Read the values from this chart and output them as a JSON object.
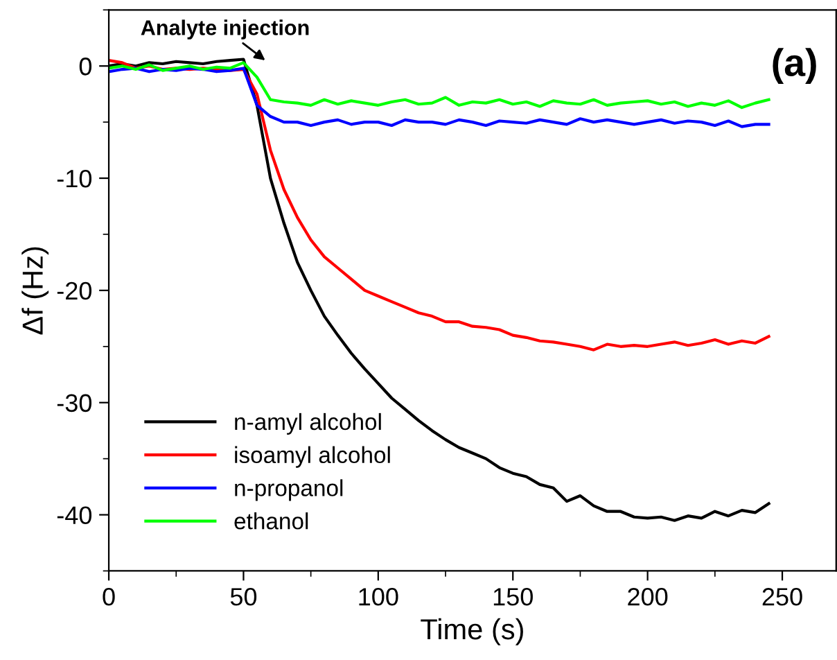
{
  "chart_data": {
    "type": "line",
    "xlabel": "Time (s)",
    "ylabel": "Δf (Hz)",
    "x": [
      0,
      5,
      10,
      15,
      20,
      25,
      30,
      35,
      40,
      45,
      50,
      55,
      60,
      65,
      70,
      75,
      80,
      85,
      90,
      95,
      100,
      105,
      110,
      115,
      120,
      125,
      130,
      135,
      140,
      145,
      150,
      155,
      160,
      165,
      170,
      175,
      180,
      185,
      190,
      195,
      200,
      205,
      210,
      215,
      220,
      225,
      230,
      235,
      240,
      245
    ],
    "series": [
      {
        "name": "n-amyl alcohol",
        "color": "#000000",
        "values": [
          0,
          0.2,
          0,
          0.3,
          0.2,
          0.4,
          0.3,
          0.2,
          0.4,
          0.5,
          0.6,
          -3.5,
          -10,
          -14,
          -17.5,
          -20,
          -22.3,
          -24,
          -25.6,
          -27,
          -28.3,
          -29.6,
          -30.6,
          -31.6,
          -32.5,
          -33.3,
          -34,
          -34.5,
          -35,
          -35.8,
          -36.3,
          -36.6,
          -37.3,
          -37.6,
          -38.8,
          -38.3,
          -39.2,
          -39.7,
          -39.7,
          -40.2,
          -40.3,
          -40.2,
          -40.5,
          -40.1,
          -40.3,
          -39.7,
          -40.1,
          -39.6,
          -39.8,
          -39.0
        ]
      },
      {
        "name": "isoamyl alcohol",
        "color": "#ff0000",
        "values": [
          0.5,
          0.3,
          -0.2,
          0,
          -0.3,
          -0.2,
          -0.3,
          -0.2,
          -0.3,
          -0.4,
          -0.3,
          -2.5,
          -7.5,
          -11,
          -13.5,
          -15.5,
          -17,
          -18,
          -19,
          -20,
          -20.5,
          -21,
          -21.5,
          -22,
          -22.3,
          -22.8,
          -22.8,
          -23.2,
          -23.3,
          -23.5,
          -24,
          -24.2,
          -24.5,
          -24.6,
          -24.8,
          -25,
          -25.3,
          -24.8,
          -25,
          -24.9,
          -25,
          -24.8,
          -24.6,
          -24.9,
          -24.7,
          -24.4,
          -24.8,
          -24.5,
          -24.7,
          -24.1
        ]
      },
      {
        "name": "n-propanol",
        "color": "#0000ff",
        "values": [
          -0.5,
          -0.3,
          -0.2,
          -0.5,
          -0.3,
          -0.4,
          -0.2,
          -0.3,
          -0.5,
          -0.4,
          -0.2,
          -3.5,
          -4.5,
          -5,
          -5,
          -5.3,
          -5,
          -4.8,
          -5.2,
          -5,
          -5,
          -5.3,
          -4.8,
          -5,
          -5,
          -5.2,
          -4.8,
          -5,
          -5.3,
          -4.9,
          -5,
          -5.1,
          -4.8,
          -5,
          -5.2,
          -4.7,
          -5,
          -4.8,
          -5,
          -5.2,
          -5,
          -4.8,
          -5.1,
          -4.9,
          -5,
          -5.3,
          -4.9,
          -5.4,
          -5.2,
          -5.2
        ]
      },
      {
        "name": "ethanol",
        "color": "#00ff00",
        "values": [
          -0.2,
          0,
          -0.3,
          0.1,
          -0.4,
          -0.2,
          0,
          -0.3,
          -0.1,
          -0.2,
          0.3,
          -1,
          -3,
          -3.2,
          -3.3,
          -3.5,
          -3,
          -3.4,
          -3.1,
          -3.3,
          -3.5,
          -3.2,
          -3,
          -3.4,
          -3.3,
          -2.8,
          -3.5,
          -3.2,
          -3.3,
          -3,
          -3.4,
          -3.2,
          -3.6,
          -3.1,
          -3.3,
          -3.4,
          -3,
          -3.5,
          -3.3,
          -3.2,
          -3.1,
          -3.4,
          -3.2,
          -3.6,
          -3.3,
          -3.5,
          -3.1,
          -3.7,
          -3.3,
          -3.0
        ]
      }
    ],
    "xlim": [
      0,
      270
    ],
    "ylim": [
      -45,
      5
    ],
    "xticks": [
      0,
      50,
      100,
      150,
      200,
      250
    ],
    "yticks": [
      -40,
      -30,
      -20,
      -10,
      0
    ],
    "annotations": [
      "Analyte injection",
      "(a)"
    ],
    "legend": "bottom left",
    "grid": false,
    "marker": "none",
    "line_style": "solid"
  }
}
